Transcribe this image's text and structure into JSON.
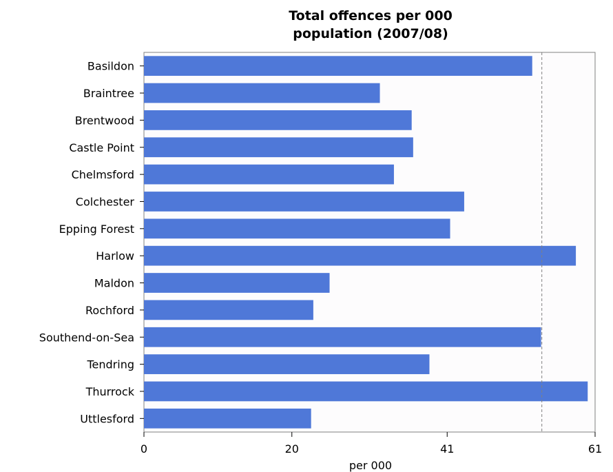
{
  "chart_data": {
    "type": "bar",
    "orientation": "horizontal",
    "title_line1": "Total offences per 000",
    "title_line2": "population (2007/08)",
    "xlabel": "per 000",
    "ylabel": "",
    "xlim": [
      0,
      61
    ],
    "xticks": [
      "0",
      "20",
      "41",
      "61"
    ],
    "xtick_values": [
      0,
      20,
      41,
      61
    ],
    "categories": [
      "Basildon",
      "Braintree",
      "Brentwood",
      "Castle Point",
      "Chelmsford",
      "Colchester",
      "Epping Forest",
      "Harlow",
      "Maldon",
      "Rochford",
      "Southend-on-Sea",
      "Tendring",
      "Thurrock",
      "Uttlesford"
    ],
    "values": [
      52.5,
      31.9,
      36.2,
      36.4,
      33.8,
      43.3,
      41.4,
      58.4,
      25.1,
      22.9,
      53.7,
      38.6,
      60.0,
      22.6
    ],
    "reference_line": 53.8,
    "bar_color": "#4f78d8",
    "reference_line_color": "#7f7f7f",
    "grid": false,
    "legend": "none"
  }
}
